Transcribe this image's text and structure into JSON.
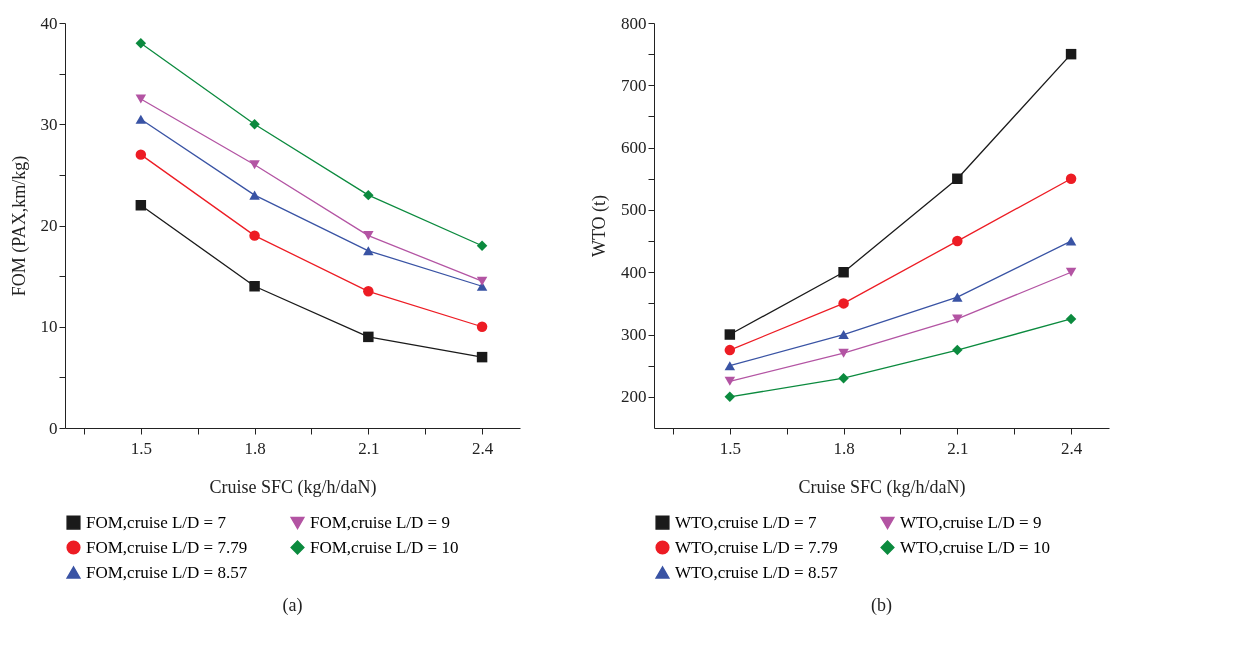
{
  "chart_data": [
    {
      "type": "line",
      "xlabel": "Cruise SFC (kg/h/daN)",
      "ylabel": "FOM (PAX,km/kg)",
      "x": [
        1.5,
        1.8,
        2.1,
        2.4
      ],
      "xlim": [
        1.3,
        2.5
      ],
      "xticks": [
        {
          "value": 1.35,
          "label": null
        },
        1.5,
        {
          "value": 1.65,
          "label": null
        },
        1.8,
        {
          "value": 1.95,
          "label": null
        },
        2.1,
        {
          "value": 2.25,
          "label": null
        },
        2.4
      ],
      "ylim": [
        0,
        40
      ],
      "yticks": [
        0,
        {
          "value": 5,
          "label": null
        },
        10,
        {
          "value": 15,
          "label": null
        },
        20,
        {
          "value": 25,
          "label": null
        },
        30,
        {
          "value": 35,
          "label": null
        },
        40
      ],
      "grid": false,
      "legend": "bottom",
      "line_style": "solid",
      "annotations": [
        "(a)"
      ],
      "series": [
        {
          "name": "FOM,cruise L/D = 7",
          "color": "#1a1a1a",
          "marker": "square",
          "values": [
            22,
            14,
            9,
            7
          ]
        },
        {
          "name": "FOM,cruise L/D = 7.79",
          "color": "#ed1c24",
          "marker": "circle",
          "values": [
            27,
            19,
            13.5,
            10
          ]
        },
        {
          "name": "FOM,cruise L/D = 8.57",
          "color": "#3953a4",
          "marker": "triangle",
          "values": [
            30.5,
            23,
            17.5,
            14
          ]
        },
        {
          "name": "FOM,cruise L/D = 9",
          "color": "#b354a3",
          "marker": "triangle-down",
          "values": [
            32.5,
            26,
            19,
            14.5
          ]
        },
        {
          "name": "FOM,cruise L/D = 10",
          "color": "#0b8a3e",
          "marker": "diamond",
          "values": [
            38,
            30,
            23,
            18
          ]
        }
      ]
    },
    {
      "type": "line",
      "xlabel": "Cruise SFC (kg/h/daN)",
      "ylabel": "WTO (t)",
      "x": [
        1.5,
        1.8,
        2.1,
        2.4
      ],
      "xlim": [
        1.3,
        2.5
      ],
      "xticks": [
        {
          "value": 1.35,
          "label": null
        },
        1.5,
        {
          "value": 1.65,
          "label": null
        },
        1.8,
        {
          "value": 1.95,
          "label": null
        },
        2.1,
        {
          "value": 2.25,
          "label": null
        },
        2.4
      ],
      "ylim": [
        150,
        800
      ],
      "yticks": [
        200,
        {
          "value": 250,
          "label": null
        },
        300,
        {
          "value": 350,
          "label": null
        },
        400,
        {
          "value": 450,
          "label": null
        },
        500,
        {
          "value": 550,
          "label": null
        },
        600,
        {
          "value": 650,
          "label": null
        },
        700,
        {
          "value": 750,
          "label": null
        },
        800
      ],
      "grid": false,
      "legend": "bottom",
      "line_style": "solid",
      "annotations": [
        "(b)"
      ],
      "series": [
        {
          "name": "WTO,cruise L/D = 7",
          "color": "#1a1a1a",
          "marker": "square",
          "values": [
            300,
            400,
            550,
            750
          ]
        },
        {
          "name": "WTO,cruise L/D = 7.79",
          "color": "#ed1c24",
          "marker": "circle",
          "values": [
            275,
            350,
            450,
            550
          ]
        },
        {
          "name": "WTO,cruise L/D = 8.57",
          "color": "#3953a4",
          "marker": "triangle",
          "values": [
            250,
            300,
            360,
            450
          ]
        },
        {
          "name": "WTO,cruise L/D = 9",
          "color": "#b354a3",
          "marker": "triangle-down",
          "values": [
            225,
            270,
            325,
            400
          ]
        },
        {
          "name": "WTO,cruise L/D = 10",
          "color": "#0b8a3e",
          "marker": "diamond",
          "values": [
            200,
            230,
            275,
            325
          ]
        }
      ]
    }
  ]
}
